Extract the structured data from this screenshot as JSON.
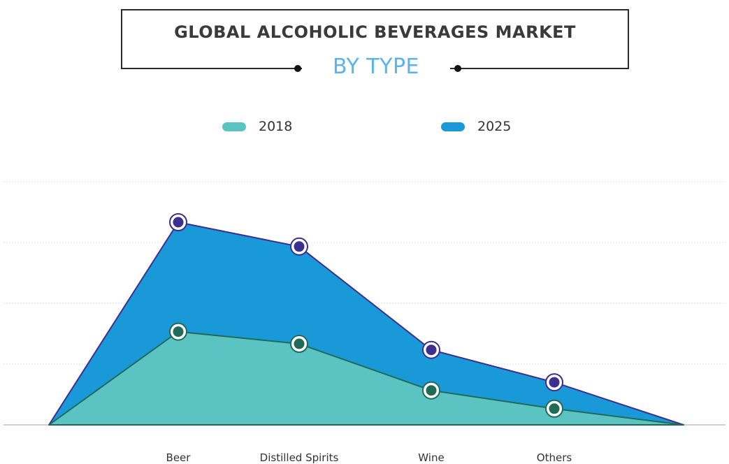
{
  "header": {
    "title": "GLOBAL ALCOHOLIC BEVERAGES MARKET",
    "subtitle": "BY TYPE"
  },
  "legend": [
    {
      "label": "2018",
      "color": "#5cc3c3"
    },
    {
      "label": "2025",
      "color": "#1a99d9"
    }
  ],
  "chart_data": {
    "type": "area",
    "categories": [
      "Beer",
      "Distilled Spirits",
      "Wine",
      "Others"
    ],
    "series": [
      {
        "name": "2025",
        "values": [
          100,
          88,
          37,
          21
        ],
        "color": "#1a99d9",
        "marker_color": "#3d2f8f"
      },
      {
        "name": "2018",
        "values": [
          46,
          40,
          17,
          8
        ],
        "color": "#5cc3c3",
        "marker_color": "#1f6b57"
      }
    ],
    "ylim": [
      0,
      120
    ],
    "grid": true,
    "legend_position": "top"
  }
}
